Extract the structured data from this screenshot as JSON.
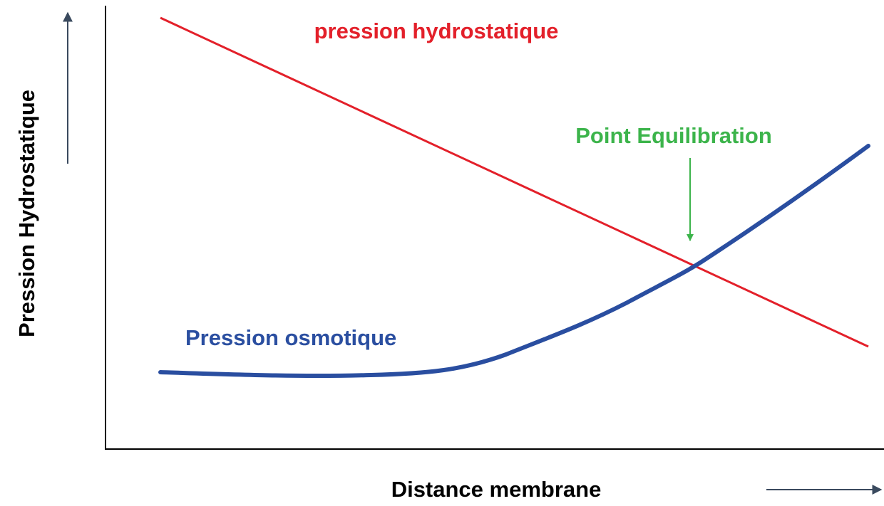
{
  "axes": {
    "y_label": "Pression Hydrostatique",
    "x_label": "Distance membrane"
  },
  "curves": [
    {
      "label": "pression hydrostatique"
    },
    {
      "label": "Pression osmotique"
    }
  ],
  "annotation": "Point Equilibration"
}
